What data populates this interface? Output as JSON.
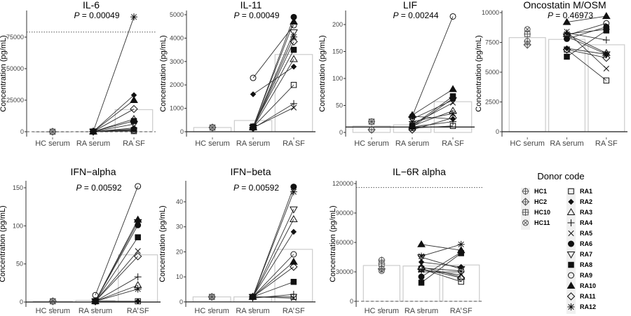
{
  "chart_data": [
    {
      "type": "bar+paired-scatter",
      "title": "IL-6",
      "p_label": "P",
      "p_value": "= 0.00049",
      "ylabel": "Concentration (pg/mL)",
      "categories": [
        "HC serum",
        "RA serum",
        "RA SF"
      ],
      "ylim": [
        -3900,
        96100
      ],
      "yticks": [
        0,
        25000,
        50000,
        75000
      ],
      "ref_lines": [
        {
          "y": 79000,
          "style": "dotted"
        },
        {
          "y": 0,
          "style": "dashed"
        }
      ],
      "bar_values": [
        0,
        100,
        17500
      ],
      "hc": {
        "HC1": 0,
        "HC2": 0,
        "HC10": 0,
        "HC11": 0
      },
      "ra_serum": {
        "RA1": 100,
        "RA2": 150,
        "RA3": 100,
        "RA4": 50,
        "RA5": 100,
        "RA6": 150,
        "RA7": 100,
        "RA8": 200,
        "RA9": 100,
        "RA10": 150,
        "RA11": 100,
        "RA12": 200
      },
      "ra_sf": {
        "RA1": 500,
        "RA2": 29000,
        "RA3": 10000,
        "RA4": 3000,
        "RA5": 1500,
        "RA6": 2000,
        "RA7": 6000,
        "RA8": 8500,
        "RA9": 1000,
        "RA10": 25000,
        "RA11": 18000,
        "RA12": 91000
      }
    },
    {
      "type": "bar+paired-scatter",
      "title": "IL-11",
      "p_label": "P",
      "p_value": "= 0.00049",
      "ylabel": "Concentration (pg/mL)",
      "categories": [
        "HC serum",
        "RA serum",
        "RA SF"
      ],
      "ylim": [
        -210,
        5180
      ],
      "yticks": [
        0,
        1000,
        2000,
        3000,
        4000,
        5000
      ],
      "ref_lines": [
        {
          "y": 0,
          "style": "solid"
        }
      ],
      "bar_values": [
        180,
        480,
        3300
      ],
      "hc": {
        "HC1": 180,
        "HC2": 180,
        "HC10": 180,
        "HC11": 180
      },
      "ra_serum": {
        "RA1": 200,
        "RA2": 1600,
        "RA3": 180,
        "RA4": 150,
        "RA5": 170,
        "RA6": 200,
        "RA7": 180,
        "RA8": 220,
        "RA9": 2300,
        "RA10": 200,
        "RA11": 160,
        "RA12": 190
      },
      "ra_sf": {
        "RA1": 2000,
        "RA2": 2780,
        "RA3": 3100,
        "RA4": 1200,
        "RA5": 1030,
        "RA6": 4900,
        "RA7": 4250,
        "RA8": 3500,
        "RA9": 4550,
        "RA10": 4700,
        "RA11": 3850,
        "RA12": 4050
      }
    },
    {
      "type": "bar+paired-scatter",
      "title": "LIF",
      "p_label": "P",
      "p_value": "= 0.00244",
      "ylabel": "Concentration (pg/mL)",
      "categories": [
        "HC serum",
        "RA serum",
        "RA SF"
      ],
      "ylim": [
        -7.8,
        226
      ],
      "yticks": [
        0,
        50,
        100,
        150,
        200
      ],
      "ref_lines": [
        {
          "y": 10,
          "style": "solid"
        }
      ],
      "bar_values": [
        12,
        14,
        57
      ],
      "hc": {
        "HC1": 5,
        "HC2": 5,
        "HC10": 20,
        "HC11": 20
      },
      "ra_serum": {
        "RA1": 8,
        "RA2": 30,
        "RA3": 12,
        "RA4": 10,
        "RA5": 15,
        "RA6": 10,
        "RA7": 25,
        "RA8": 12,
        "RA9": 30,
        "RA10": 32,
        "RA11": 5,
        "RA12": 20
      },
      "ra_sf": {
        "RA1": 12,
        "RA2": 25,
        "RA3": 40,
        "RA4": 20,
        "RA5": 55,
        "RA6": 63,
        "RA7": 60,
        "RA8": 67,
        "RA9": 215,
        "RA10": 80,
        "RA11": 27,
        "RA12": 35
      }
    },
    {
      "type": "bar+paired-scatter",
      "title": "Oncostatin M/OSM",
      "p_label": "P",
      "p_value": "= 0.46973",
      "ylabel": "Concentration (pg/mL)",
      "categories": [
        "HC serum",
        "RA serum",
        "RA SF"
      ],
      "ylim": [
        -412,
        10176
      ],
      "yticks": [
        0,
        2500,
        5000,
        7500,
        10000
      ],
      "ref_lines": [
        {
          "y": 0,
          "style": "solid"
        }
      ],
      "bar_values": [
        7900,
        7750,
        7300
      ],
      "hc": {
        "HC1": 7600,
        "HC2": 7300,
        "HC10": 8200,
        "HC11": 8600
      },
      "ra_serum": {
        "RA1": 6900,
        "RA2": 7000,
        "RA3": 8200,
        "RA4": 8300,
        "RA5": 8400,
        "RA6": 7800,
        "RA7": 8000,
        "RA8": 6300,
        "RA9": 8100,
        "RA10": 9200,
        "RA11": 6900,
        "RA12": 8200
      },
      "ra_sf": {
        "RA1": 4300,
        "RA2": 6500,
        "RA3": 6600,
        "RA4": 7700,
        "RA5": 5300,
        "RA6": 8800,
        "RA7": 6500,
        "RA8": 8500,
        "RA9": 9100,
        "RA10": 9700,
        "RA11": 6200,
        "RA12": 8600
      }
    },
    {
      "type": "bar+paired-scatter",
      "title": "IFN−alpha",
      "p_label": "P",
      "p_value": "= 0.00592",
      "ylabel": "Concentration (pg/mL)",
      "categories": [
        "HC serum",
        "RA serum",
        "RA SF"
      ],
      "ylim": [
        -6.4,
        159.2
      ],
      "yticks": [
        0,
        50,
        100,
        150
      ],
      "ref_lines": [
        {
          "y": 0,
          "style": "solid"
        }
      ],
      "bar_values": [
        1,
        2,
        62
      ],
      "hc": {
        "HC1": 1,
        "HC2": 1,
        "HC10": 1,
        "HC11": 1
      },
      "ra_serum": {
        "RA1": 1,
        "RA2": 1,
        "RA3": 1,
        "RA4": 1,
        "RA5": 1,
        "RA6": 1,
        "RA7": 1,
        "RA8": 1,
        "RA9": 9,
        "RA10": 1,
        "RA11": 1,
        "RA12": 1
      },
      "ra_sf": {
        "RA1": 1,
        "RA2": 1,
        "RA3": 22,
        "RA4": 33,
        "RA5": 67,
        "RA6": 101,
        "RA7": 105,
        "RA8": 85,
        "RA9": 152,
        "RA10": 108,
        "RA11": 60,
        "RA12": 17
      }
    },
    {
      "type": "bar+paired-scatter",
      "title": "IFN−beta",
      "p_label": "P",
      "p_value": "= 0.00592",
      "ylabel": "Concentration (pg/mL)",
      "categories": [
        "HC serum",
        "RA serum",
        "RA SF"
      ],
      "ylim": [
        -2.0,
        48.4
      ],
      "yticks": [
        0,
        10,
        20,
        30,
        40
      ],
      "ref_lines": [
        {
          "y": 0,
          "style": "solid"
        }
      ],
      "bar_values": [
        2,
        2,
        21
      ],
      "hc": {
        "HC1": 2,
        "HC2": 2,
        "HC10": 2,
        "HC11": 2
      },
      "ra_serum": {
        "RA1": 2,
        "RA2": 2,
        "RA3": 2,
        "RA4": 1.5,
        "RA5": 2,
        "RA6": 2,
        "RA7": 2,
        "RA8": 2,
        "RA9": 2,
        "RA10": 2,
        "RA11": 2,
        "RA12": 2
      },
      "ra_sf": {
        "RA1": 2,
        "RA2": 28,
        "RA3": 33,
        "RA4": 3,
        "RA5": 1.5,
        "RA6": 46,
        "RA7": 37,
        "RA8": 8,
        "RA9": 19,
        "RA10": 16,
        "RA11": 14,
        "RA12": 44
      }
    },
    {
      "type": "bar+paired-scatter",
      "title": "IL−6R alpha",
      "p_label": "",
      "p_value": "",
      "ylabel": "Concentration (pg/mL)",
      "categories": [
        "HC serum",
        "RA serum",
        "RA SF"
      ],
      "ylim": [
        -5700,
        122860
      ],
      "yticks": [
        0,
        30000,
        60000,
        90000,
        120000
      ],
      "ref_lines": [
        {
          "y": 116000,
          "style": "dotted"
        },
        {
          "y": 0,
          "style": "dashed"
        }
      ],
      "bar_values": [
        36500,
        36000,
        37000
      ],
      "hc": {
        "HC1": 42000,
        "HC2": 33000,
        "HC10": 38000,
        "HC11": 31000
      },
      "ra_serum": {
        "RA1": 33000,
        "RA2": 40000,
        "RA3": 35000,
        "RA4": 30000,
        "RA5": 32000,
        "RA6": 25000,
        "RA7": 45000,
        "RA8": 19000,
        "RA9": 34000,
        "RA10": 58000,
        "RA11": 33000,
        "RA12": 46000
      },
      "ra_sf": {
        "RA1": 20000,
        "RA2": 35000,
        "RA3": 25000,
        "RA4": 30000,
        "RA5": 27000,
        "RA6": 50000,
        "RA7": 33000,
        "RA8": 49000,
        "RA9": 31000,
        "RA10": 52000,
        "RA11": 24000,
        "RA12": 58000
      }
    }
  ],
  "legend": {
    "title": "Donor code",
    "hc": [
      {
        "code": "HC1",
        "shape": "circle-plus"
      },
      {
        "code": "HC2",
        "shape": "diamond-plus"
      },
      {
        "code": "HC10",
        "shape": "square-plus"
      },
      {
        "code": "HC11",
        "shape": "circle-x"
      }
    ],
    "ra": [
      {
        "code": "RA1",
        "shape": "square-open"
      },
      {
        "code": "RA2",
        "shape": "diamond-filled"
      },
      {
        "code": "RA3",
        "shape": "triangle-open"
      },
      {
        "code": "RA4",
        "shape": "plus"
      },
      {
        "code": "RA5",
        "shape": "x"
      },
      {
        "code": "RA6",
        "shape": "circle-filled"
      },
      {
        "code": "RA7",
        "shape": "triangle-down-open"
      },
      {
        "code": "RA8",
        "shape": "square-filled"
      },
      {
        "code": "RA9",
        "shape": "circle-open"
      },
      {
        "code": "RA10",
        "shape": "triangle-filled"
      },
      {
        "code": "RA11",
        "shape": "diamond-open"
      },
      {
        "code": "RA12",
        "shape": "asterisk"
      }
    ]
  },
  "colors": {
    "points": "#111111",
    "hc_points": "#555555",
    "bars": "#cccccc",
    "lines": "#333333"
  }
}
